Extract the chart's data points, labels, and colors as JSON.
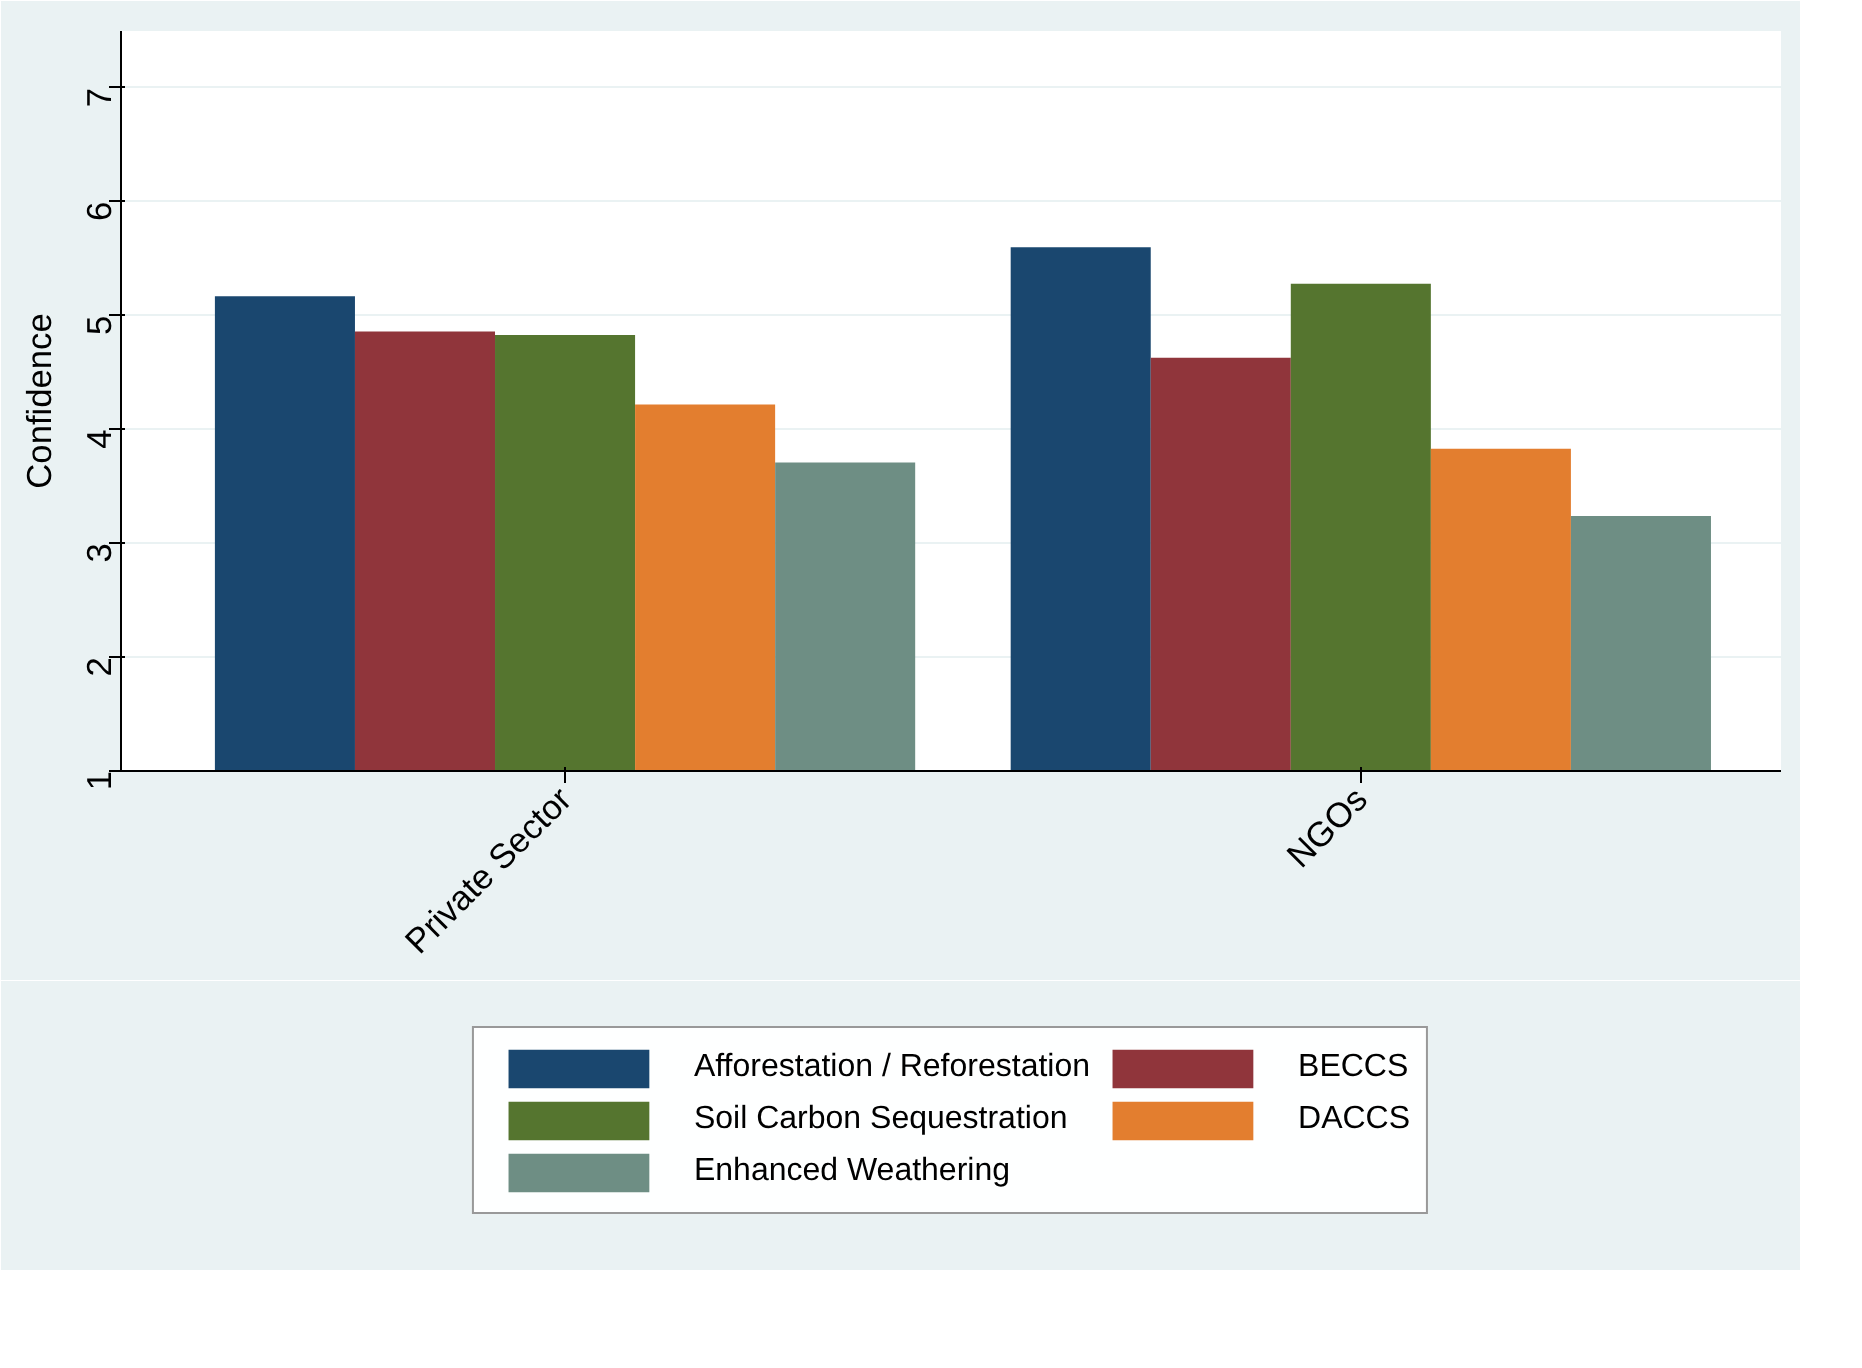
{
  "chart_data": {
    "type": "bar",
    "categories": [
      "Private Sector",
      "NGOs"
    ],
    "ylabel": "Confidence",
    "ylim": [
      1,
      7.5
    ],
    "yticks": [
      1,
      2,
      3,
      4,
      5,
      6,
      7
    ],
    "grid": "y",
    "legend": "bottom",
    "series": [
      {
        "name": "Afforestation / Reforestation",
        "color": "#1a476f",
        "values": [
          5.17,
          5.6
        ]
      },
      {
        "name": "BECCS",
        "color": "#90353b",
        "values": [
          4.86,
          4.63
        ]
      },
      {
        "name": "Soil Carbon Sequestration",
        "color": "#55752f",
        "values": [
          4.83,
          5.28
        ]
      },
      {
        "name": "DACCS",
        "color": "#e37e2f",
        "values": [
          4.22,
          3.83
        ]
      },
      {
        "name": "Enhanced Weathering",
        "color": "#6e8e84",
        "values": [
          3.71,
          3.24
        ]
      }
    ]
  }
}
